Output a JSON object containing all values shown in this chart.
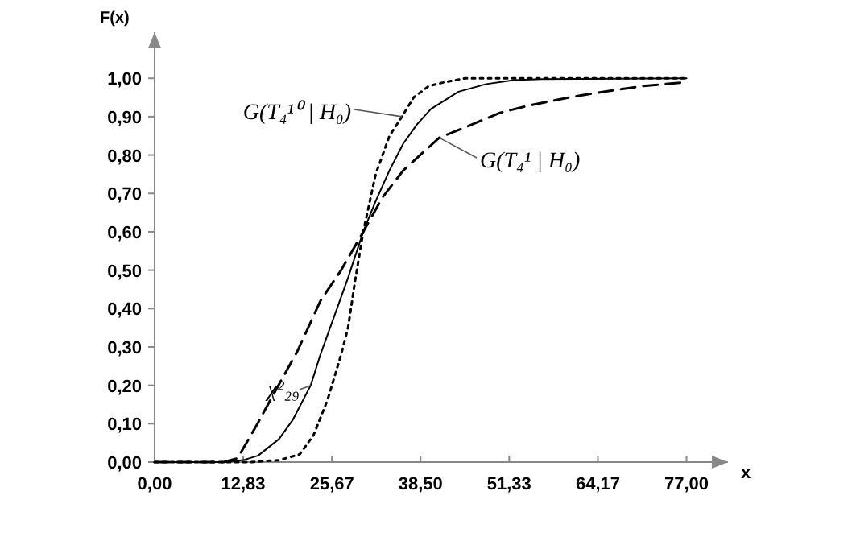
{
  "chart_data": {
    "type": "line",
    "xlabel": "x",
    "ylabel": "F(x)",
    "xlim": [
      0,
      83
    ],
    "ylim": [
      0,
      1.12
    ],
    "xticks": [
      {
        "value": 0,
        "label": "0,00"
      },
      {
        "value": 12.83,
        "label": "12,83"
      },
      {
        "value": 25.67,
        "label": "25,67"
      },
      {
        "value": 38.5,
        "label": "38,50"
      },
      {
        "value": 51.33,
        "label": "51,33"
      },
      {
        "value": 64.17,
        "label": "64,17"
      },
      {
        "value": 77,
        "label": "77,00"
      }
    ],
    "yticks": [
      {
        "value": 0,
        "label": "0,00"
      },
      {
        "value": 0.1,
        "label": "0,10"
      },
      {
        "value": 0.2,
        "label": "0,20"
      },
      {
        "value": 0.3,
        "label": "0,30"
      },
      {
        "value": 0.4,
        "label": "0,40"
      },
      {
        "value": 0.5,
        "label": "0,50"
      },
      {
        "value": 0.6,
        "label": "0,60"
      },
      {
        "value": 0.7,
        "label": "0,70"
      },
      {
        "value": 0.8,
        "label": "0,80"
      },
      {
        "value": 0.9,
        "label": "0,90"
      },
      {
        "value": 1,
        "label": "1,00"
      }
    ],
    "grid": false,
    "series": [
      {
        "name": "G(T₄¹⁰ | H₀)",
        "color": "#000000",
        "line_style": "dotted",
        "x": [
          0,
          14,
          18,
          21,
          23,
          25,
          27,
          28,
          29,
          30.2,
          32,
          34,
          35.8,
          37.5,
          39.7,
          42,
          45,
          50,
          60,
          77
        ],
        "values": [
          0,
          0,
          0.005,
          0.02,
          0.07,
          0.16,
          0.28,
          0.35,
          0.47,
          0.6,
          0.75,
          0.85,
          0.9,
          0.95,
          0.98,
          0.99,
          1,
          1,
          1,
          1
        ]
      },
      {
        "name": "G(T₄¹ | H₀)",
        "color": "#000000",
        "line_style": "dashed",
        "x": [
          0,
          10,
          12,
          14.9,
          17,
          20.7,
          24,
          27,
          30.2,
          33,
          36,
          41.2,
          46,
          50,
          54.4,
          60,
          65,
          70.7,
          77
        ],
        "values": [
          0,
          0,
          0.01,
          0.1,
          0.17,
          0.29,
          0.42,
          0.5,
          0.6,
          0.69,
          0.76,
          0.845,
          0.88,
          0.91,
          0.93,
          0.95,
          0.965,
          0.98,
          0.99
        ]
      },
      {
        "name": "χ²₂₉",
        "color": "#000000",
        "line_style": "solid",
        "x": [
          0,
          10,
          12.83,
          15,
          18,
          20,
          22.6,
          24,
          26,
          28,
          30.2,
          32,
          34,
          36,
          38,
          40,
          44,
          48,
          52,
          56,
          77
        ],
        "values": [
          0,
          0,
          0.005,
          0.017,
          0.06,
          0.11,
          0.2,
          0.28,
          0.38,
          0.48,
          0.6,
          0.68,
          0.76,
          0.83,
          0.88,
          0.92,
          0.965,
          0.985,
          0.995,
          0.998,
          1
        ]
      }
    ]
  }
}
